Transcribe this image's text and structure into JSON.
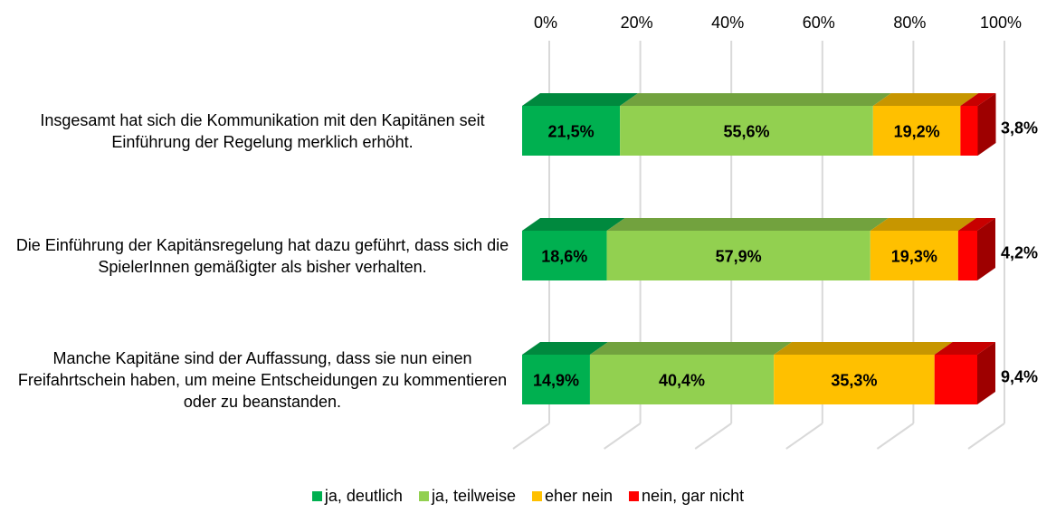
{
  "chart_data": {
    "type": "bar",
    "orientation": "horizontal",
    "stacked": true,
    "categories": [
      "Insgesamt hat sich die Kommunikation mit den Kapitänen seit Einführung der Regelung merklich erhöht.",
      "Die Einführung der Kapitänsregelung hat dazu geführt, dass sich die SpielerInnen gemäßigter als bisher verhalten.",
      "Manche Kapitäne sind der Auffassung, dass sie nun einen Freifahrtschein haben, um meine Entscheidungen zu kommentieren oder zu beanstanden."
    ],
    "series": [
      {
        "name": "ja, deutlich",
        "color": "#00b050",
        "values": [
          21.5,
          18.6,
          14.9
        ],
        "value_labels": [
          "21,5%",
          "18,6%",
          "14,9%"
        ]
      },
      {
        "name": "ja, teilweise",
        "color": "#92d050",
        "values": [
          55.6,
          57.9,
          40.4
        ],
        "value_labels": [
          "55,6%",
          "57,9%",
          "40,4%"
        ]
      },
      {
        "name": "eher nein",
        "color": "#ffc000",
        "values": [
          19.2,
          19.3,
          35.3
        ],
        "value_labels": [
          "19,2%",
          "19,3%",
          "35,3%"
        ]
      },
      {
        "name": "nein, gar nicht",
        "color": "#ff0000",
        "values": [
          3.8,
          4.2,
          9.4
        ],
        "value_labels": [
          "3,8%",
          "4,2%",
          "9,4%"
        ]
      }
    ],
    "xlim": [
      0,
      100
    ],
    "xticks": [
      {
        "value": 0,
        "label": "0%"
      },
      {
        "value": 20,
        "label": "20%"
      },
      {
        "value": 40,
        "label": "40%"
      },
      {
        "value": 60,
        "label": "60%"
      },
      {
        "value": 80,
        "label": "80%"
      },
      {
        "value": 100,
        "label": "100%"
      }
    ],
    "grid": true,
    "legend": "bottom"
  }
}
